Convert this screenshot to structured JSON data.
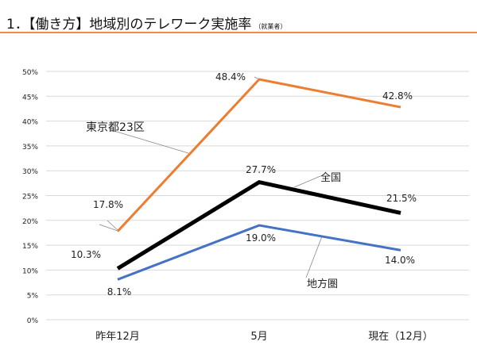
{
  "header": {
    "title": "1．【働き方】地域別のテレワーク実施率",
    "subtitle": "（就業者）"
  },
  "chart_data": {
    "type": "line",
    "categories": [
      "昨年12月",
      "5月",
      "現在（12月）"
    ],
    "ylim": [
      0,
      50
    ],
    "yticks": [
      0,
      5,
      10,
      15,
      20,
      25,
      30,
      35,
      40,
      45,
      50
    ],
    "ytick_labels": [
      "0%",
      "5%",
      "10%",
      "15%",
      "20%",
      "25%",
      "30%",
      "35%",
      "40%",
      "45%",
      "50%"
    ],
    "grid": true,
    "series": [
      {
        "name": "東京都23区",
        "values": [
          17.8,
          48.4,
          42.8
        ],
        "labels": [
          "17.8%",
          "48.4%",
          "42.8%"
        ],
        "color": "#ed7d31"
      },
      {
        "name": "全国",
        "values": [
          10.3,
          27.7,
          21.5
        ],
        "labels": [
          "10.3%",
          "27.7%",
          "21.5%"
        ],
        "color": "#000000"
      },
      {
        "name": "地方圏",
        "values": [
          8.1,
          19.0,
          14.0
        ],
        "labels": [
          "8.1%",
          "19.0%",
          "14.0%"
        ],
        "color": "#4472c4"
      }
    ]
  }
}
